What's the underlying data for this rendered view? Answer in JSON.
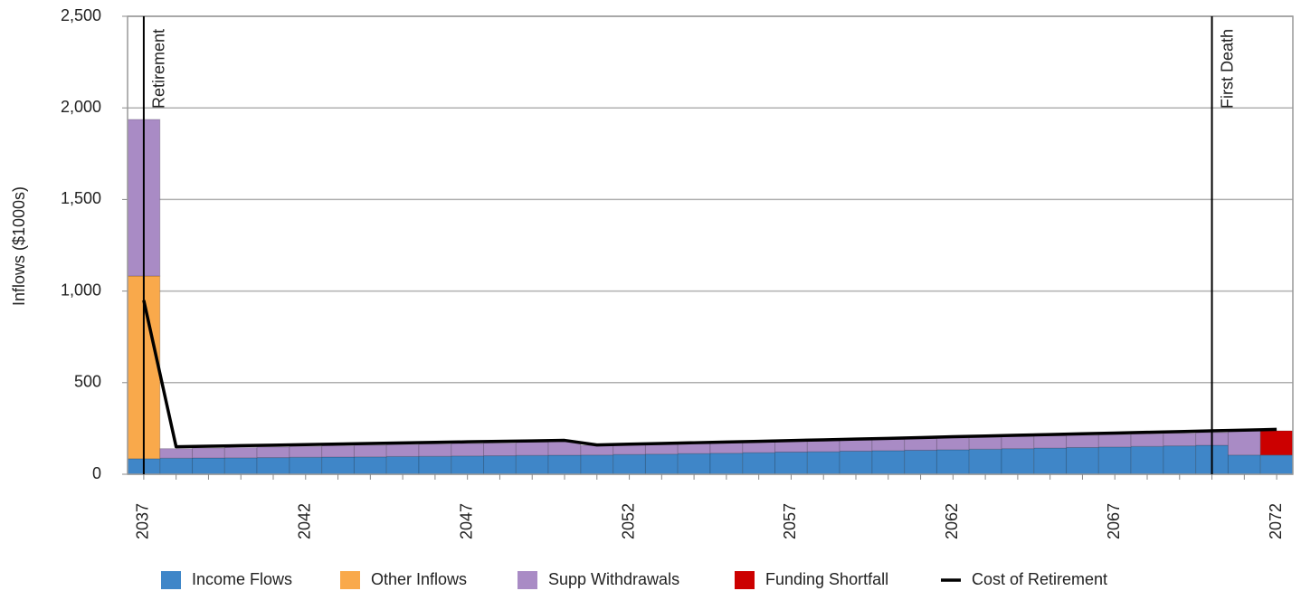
{
  "chart_data": {
    "type": "stacked_bar_line",
    "ylabel": "Inflows ($1000s)",
    "categories": [
      "2037",
      null,
      null,
      null,
      null,
      "2042",
      null,
      null,
      null,
      null,
      "2047",
      null,
      null,
      null,
      null,
      "2052",
      null,
      null,
      null,
      null,
      "2057",
      null,
      null,
      null,
      null,
      "2062",
      null,
      null,
      null,
      null,
      "2067",
      null,
      null,
      null,
      null,
      "2072"
    ],
    "series": [
      {
        "name": "Income Flows",
        "color": "#3f86c8",
        "kind": "bar",
        "values": [
          85,
          88,
          89,
          90,
          91,
          93,
          94,
          95,
          97,
          98,
          100,
          101,
          103,
          104,
          105,
          108,
          110,
          113,
          115,
          118,
          121,
          123,
          126,
          129,
          131,
          134,
          137,
          140,
          143,
          146,
          149,
          152,
          155,
          158,
          105,
          105
        ]
      },
      {
        "name": "Other Inflows",
        "color": "#f9a94b",
        "kind": "bar",
        "values": [
          997,
          0,
          0,
          0,
          0,
          0,
          0,
          0,
          0,
          0,
          0,
          0,
          0,
          0,
          0,
          0,
          0,
          0,
          0,
          0,
          0,
          0,
          0,
          0,
          0,
          0,
          0,
          0,
          0,
          0,
          0,
          0,
          0,
          0,
          0,
          0
        ]
      },
      {
        "name": "Supp Withdrawals",
        "color": "#a98bc5",
        "kind": "bar",
        "values": [
          855,
          52,
          54,
          56,
          58,
          59,
          62,
          64,
          65,
          67,
          68,
          69,
          72,
          74,
          53,
          54,
          55,
          56,
          58,
          58,
          59,
          61,
          61,
          62,
          64,
          64,
          65,
          66,
          67,
          67,
          68,
          69,
          69,
          70,
          132,
          0
        ]
      },
      {
        "name": "Funding Shortfall",
        "color": "#cc0000",
        "kind": "bar",
        "values": [
          0,
          0,
          0,
          0,
          0,
          0,
          0,
          0,
          0,
          0,
          0,
          0,
          0,
          0,
          0,
          0,
          0,
          0,
          0,
          0,
          0,
          0,
          0,
          0,
          0,
          0,
          0,
          0,
          0,
          0,
          0,
          0,
          0,
          0,
          0,
          132
        ]
      },
      {
        "name": "Cost of Retirement",
        "color": "#000000",
        "kind": "line",
        "values": [
          950,
          150,
          153,
          156,
          159,
          162,
          165,
          168,
          171,
          174,
          177,
          180,
          182,
          185,
          160,
          164,
          168,
          172,
          176,
          180,
          184,
          188,
          192,
          196,
          200,
          205,
          209,
          213,
          217,
          221,
          225,
          229,
          233,
          237,
          241,
          245
        ]
      }
    ],
    "annotations": [
      {
        "text": "Retirement",
        "x": 2037
      },
      {
        "text": "First Death",
        "x": 2070
      }
    ],
    "ylim": [
      0,
      2500
    ],
    "yticks": [
      0,
      500,
      {
        "value": 1000,
        "label": "1,000"
      },
      {
        "value": 1500,
        "label": "1,500"
      },
      {
        "value": 2000,
        "label": "2,000"
      },
      {
        "value": 2500,
        "label": "2,500"
      }
    ],
    "grid": true,
    "legend": "bottom"
  }
}
